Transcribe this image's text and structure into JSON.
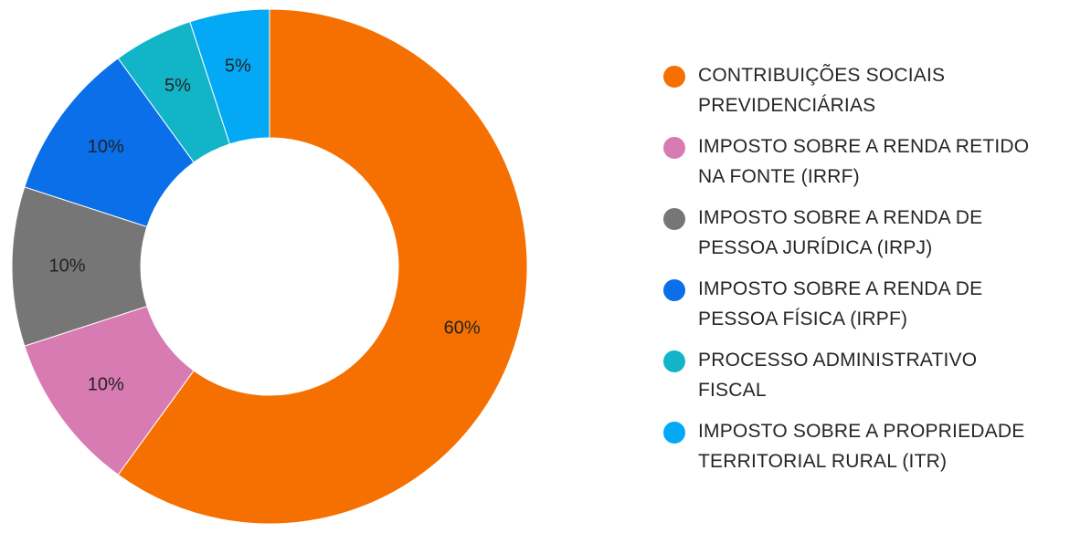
{
  "chart_data": {
    "type": "pie",
    "donut": true,
    "legend_position": "right",
    "slices": [
      {
        "label": "CONTRIBUIÇÕES SOCIAIS PREVIDENCIÁRIAS",
        "legend_lines": [
          "CONTRIBUIÇÕES SOCIAIS",
          "PREVIDENCIÁRIAS"
        ],
        "value": 60,
        "display": "60%",
        "color": "#F57000"
      },
      {
        "label": "IMPOSTO SOBRE A RENDA RETIDO NA FONTE (IRRF)",
        "legend_lines": [
          "IMPOSTO SOBRE A RENDA RETIDO",
          "NA FONTE (IRRF)"
        ],
        "value": 10,
        "display": "10%",
        "color": "#D87BB3"
      },
      {
        "label": "IMPOSTO SOBRE A RENDA DE PESSOA JURÍDICA (IRPJ)",
        "legend_lines": [
          "IMPOSTO SOBRE A RENDA DE",
          "PESSOA JURÍDICA (IRPJ)"
        ],
        "value": 10,
        "display": "10%",
        "color": "#767676"
      },
      {
        "label": "IMPOSTO SOBRE A RENDA DE PESSOA FÍSICA (IRPF)",
        "legend_lines": [
          "IMPOSTO SOBRE A RENDA DE",
          "PESSOA FÍSICA (IRPF)"
        ],
        "value": 10,
        "display": "10%",
        "color": "#0A6FE8"
      },
      {
        "label": "PROCESSO ADMINISTRATIVO FISCAL",
        "legend_lines": [
          "PROCESSO ADMINISTRATIVO",
          "FISCAL"
        ],
        "value": 5,
        "display": "5%",
        "color": "#12B5C8"
      },
      {
        "label": "IMPOSTO SOBRE A PROPRIEDADE TERRITORIAL RURAL (ITR)",
        "legend_lines": [
          "IMPOSTO SOBRE A PROPRIEDADE",
          "TERRITORIAL RURAL (ITR)"
        ],
        "value": 5,
        "display": "5%",
        "color": "#03A9F4"
      }
    ]
  }
}
